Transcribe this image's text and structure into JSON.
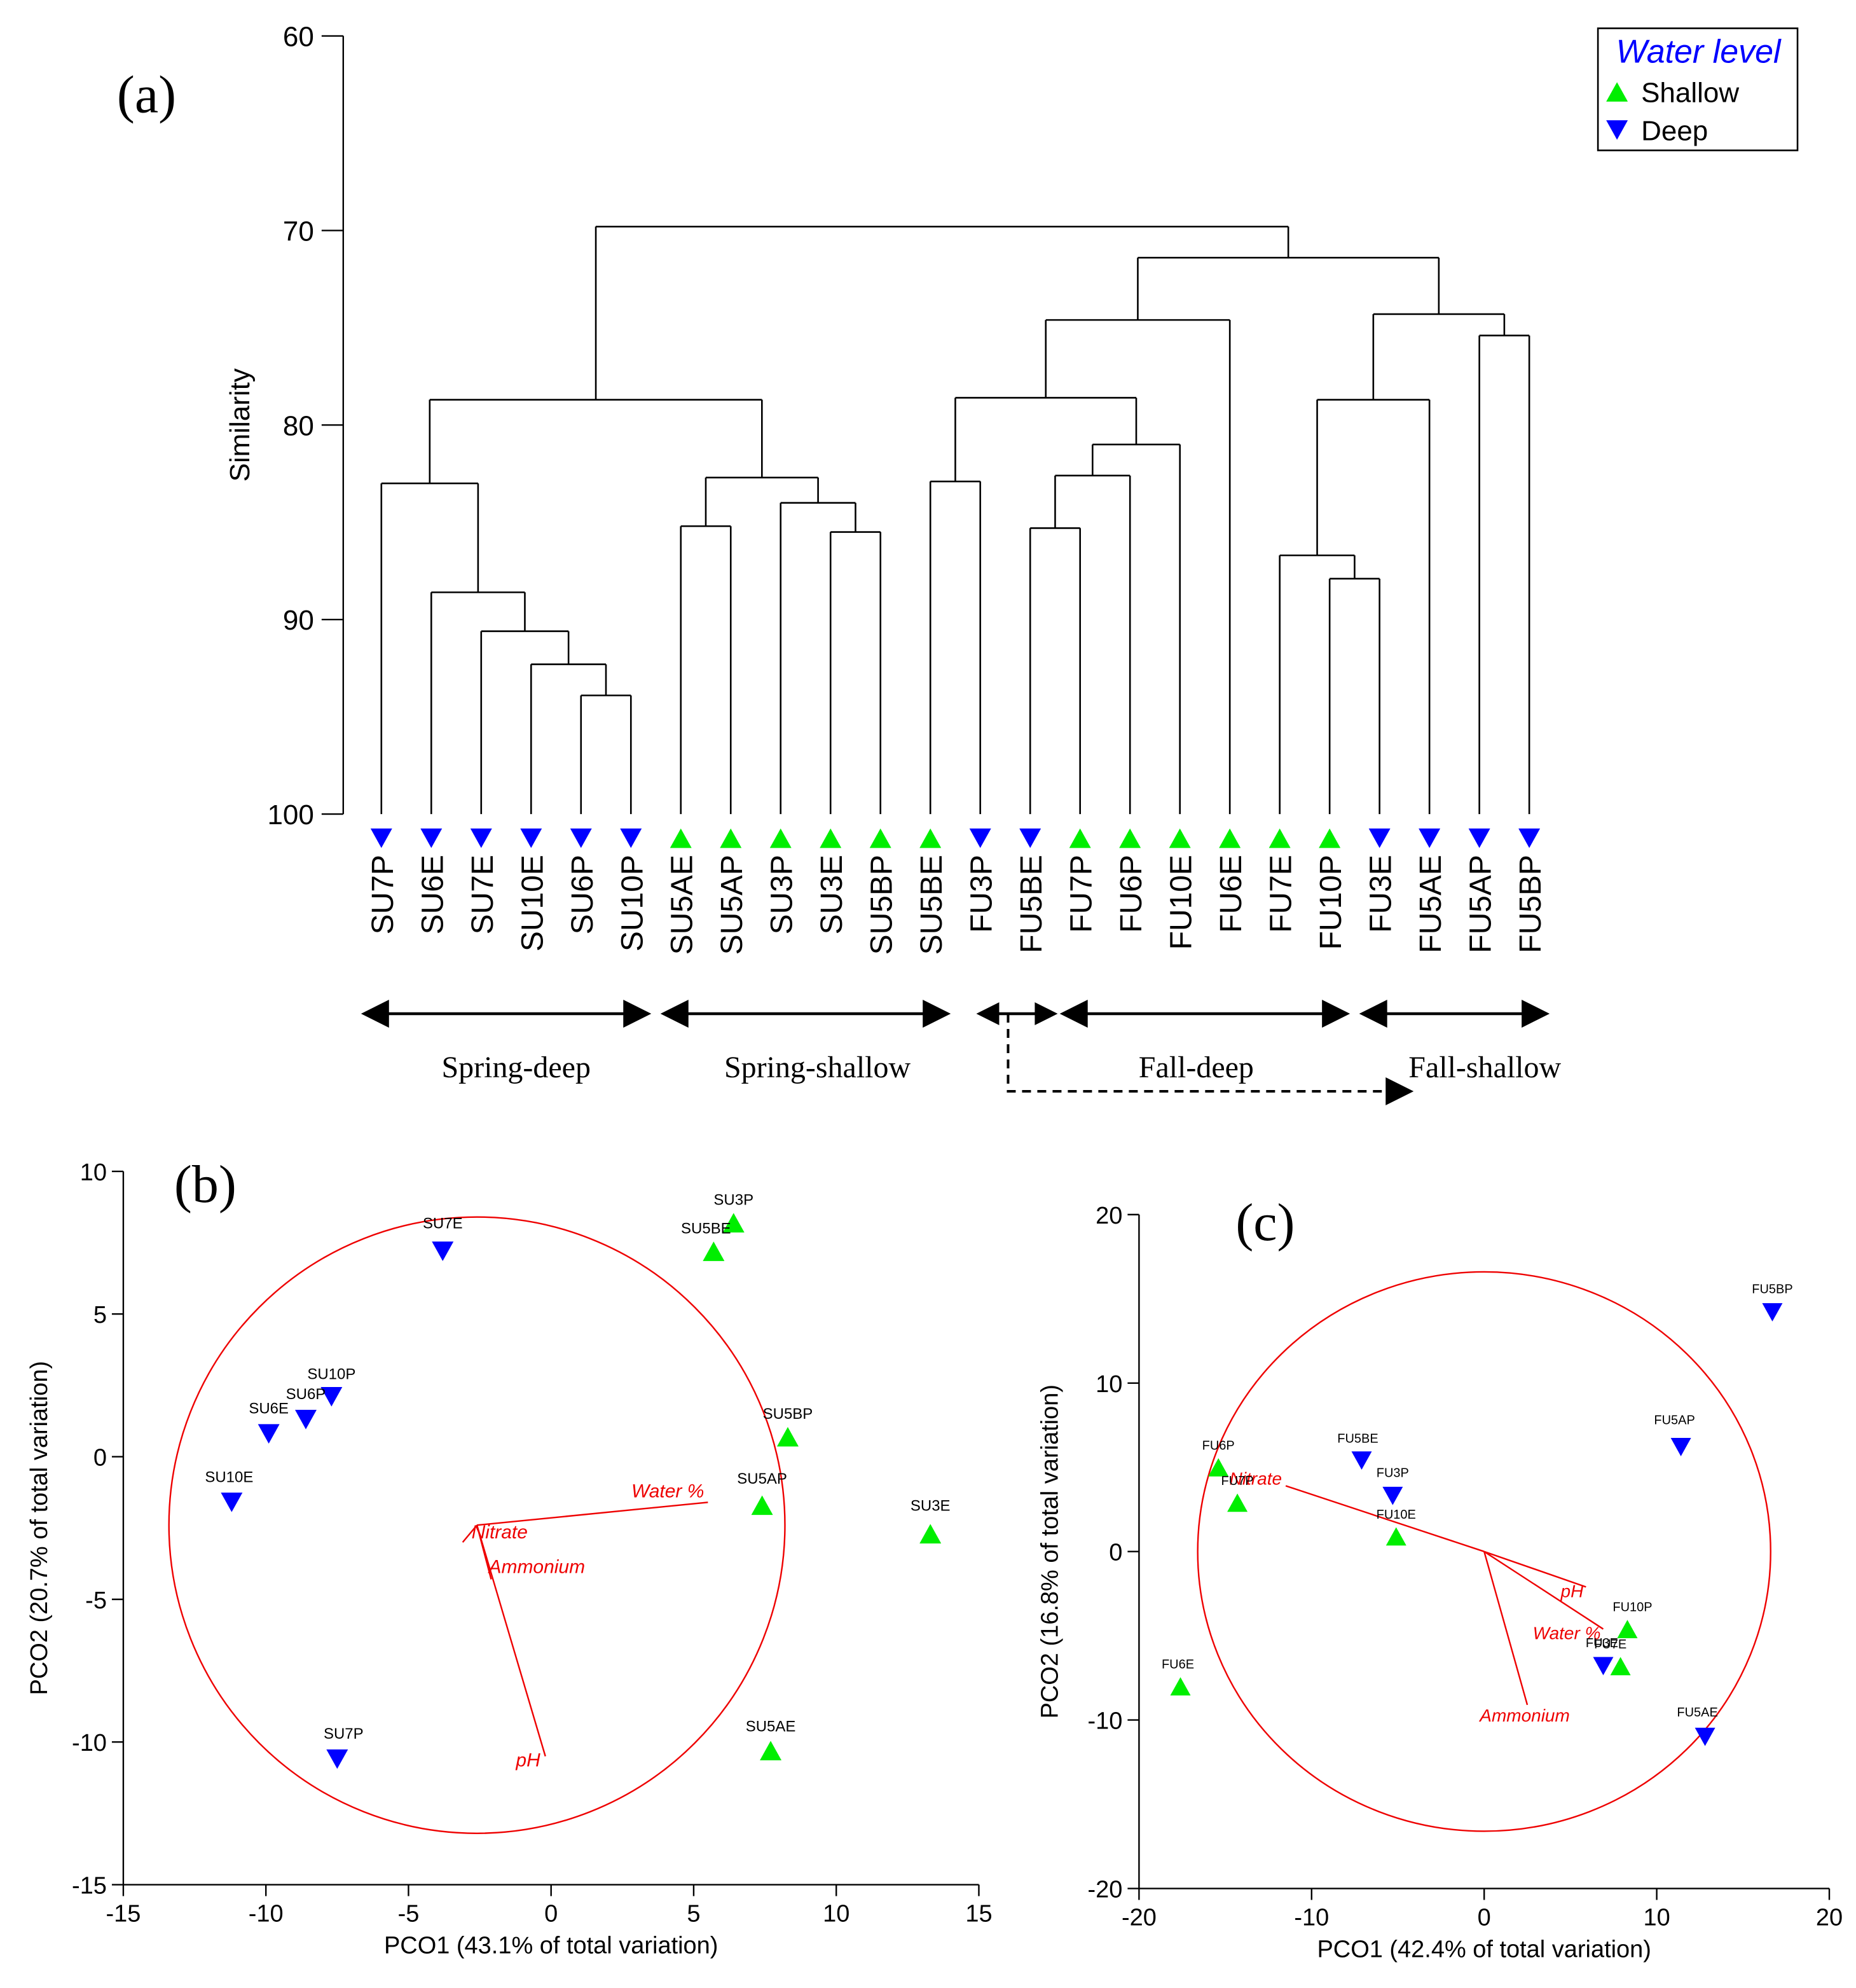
{
  "colors": {
    "shallow": "#00ee00",
    "deep": "#0000ff",
    "vector": "#ee0000",
    "line": "#000000"
  },
  "chart_data": [
    {
      "type": "dendrogram",
      "panel_label": "(a)",
      "ylabel": "Similarity",
      "ylim": [
        60,
        100
      ],
      "yticks": [
        "60",
        "70",
        "80",
        "90",
        "100"
      ],
      "leaves": [
        {
          "label": "SU7P",
          "group": "deep"
        },
        {
          "label": "SU6E",
          "group": "deep"
        },
        {
          "label": "SU7E",
          "group": "deep"
        },
        {
          "label": "SU10E",
          "group": "deep"
        },
        {
          "label": "SU6P",
          "group": "deep"
        },
        {
          "label": "SU10P",
          "group": "deep"
        },
        {
          "label": "SU5AE",
          "group": "shallow"
        },
        {
          "label": "SU5AP",
          "group": "shallow"
        },
        {
          "label": "SU3P",
          "group": "shallow"
        },
        {
          "label": "SU3E",
          "group": "shallow"
        },
        {
          "label": "SU5BP",
          "group": "shallow"
        },
        {
          "label": "SU5BE",
          "group": "shallow"
        },
        {
          "label": "FU3P",
          "group": "deep"
        },
        {
          "label": "FU5BE",
          "group": "deep"
        },
        {
          "label": "FU7P",
          "group": "shallow"
        },
        {
          "label": "FU6P",
          "group": "shallow"
        },
        {
          "label": "FU10E",
          "group": "shallow"
        },
        {
          "label": "FU6E",
          "group": "shallow"
        },
        {
          "label": "FU7E",
          "group": "shallow"
        },
        {
          "label": "FU10P",
          "group": "shallow"
        },
        {
          "label": "FU3E",
          "group": "deep"
        },
        {
          "label": "FU5AE",
          "group": "deep"
        },
        {
          "label": "FU5AP",
          "group": "deep"
        },
        {
          "label": "FU5BP",
          "group": "deep"
        }
      ],
      "merges": [
        {
          "a": 4,
          "b": 5,
          "height": 93.9
        },
        {
          "a": 3,
          "b": 24,
          "height": 92.3
        },
        {
          "a": 2,
          "b": 25,
          "height": 90.6
        },
        {
          "a": 1,
          "b": 26,
          "height": 88.6
        },
        {
          "a": 0,
          "b": 27,
          "height": 83.0
        },
        {
          "a": 9,
          "b": 10,
          "height": 85.5
        },
        {
          "a": 8,
          "b": 29,
          "height": 84.0
        },
        {
          "a": 6,
          "b": 7,
          "height": 85.2
        },
        {
          "a": 31,
          "b": 30,
          "height": 82.7
        },
        {
          "a": 28,
          "b": 32,
          "height": 78.7
        },
        {
          "a": 11,
          "b": 12,
          "height": 82.9
        },
        {
          "a": 13,
          "b": 14,
          "height": 85.3
        },
        {
          "a": 35,
          "b": 15,
          "height": 82.6
        },
        {
          "a": 36,
          "b": 16,
          "height": 81.0
        },
        {
          "a": 34,
          "b": 37,
          "height": 78.6
        },
        {
          "a": 38,
          "b": 17,
          "height": 74.6
        },
        {
          "a": 19,
          "b": 20,
          "height": 87.9
        },
        {
          "a": 18,
          "b": 40,
          "height": 86.7
        },
        {
          "a": 41,
          "b": 21,
          "height": 78.7
        },
        {
          "a": 22,
          "b": 23,
          "height": 75.4
        },
        {
          "a": 42,
          "b": 43,
          "height": 74.3
        },
        {
          "a": 39,
          "b": 44,
          "height": 71.4
        },
        {
          "a": 33,
          "b": 45,
          "height": 69.8
        }
      ],
      "groups": [
        {
          "label": "Spring-deep",
          "from": "SU7P",
          "to": "SU10P"
        },
        {
          "label": "Spring-shallow",
          "from": "SU5AE",
          "to": "SU5BE"
        },
        {
          "label": "Fall-deep",
          "from": "FU7P",
          "to": "FU10P"
        },
        {
          "label": "Fall-shallow",
          "from": "FU3E",
          "to": "FU5BP"
        }
      ],
      "legend": {
        "title": "Water level",
        "items": [
          {
            "label": "Shallow",
            "group": "shallow"
          },
          {
            "label": "Deep",
            "group": "deep"
          }
        ]
      }
    },
    {
      "type": "scatter",
      "panel_label": "(b)",
      "xlabel": "PCO1 (43.1% of total variation)",
      "ylabel": "PCO2 (20.7% of total variation)",
      "xlim": [
        -15,
        15
      ],
      "ylim": [
        -15,
        10
      ],
      "xticks": [
        "-15",
        "-10",
        "-5",
        "0",
        "5",
        "10",
        "15"
      ],
      "yticks": [
        "10",
        "5",
        "0",
        "-5",
        "-10",
        "-15"
      ],
      "circle": {
        "cx": -2.6,
        "cy": -2.4,
        "r": 10.8
      },
      "points": [
        {
          "label": "SU7E",
          "x": -3.8,
          "y": 7.2,
          "group": "deep"
        },
        {
          "label": "SU10P",
          "x": -7.7,
          "y": 2.1,
          "group": "deep"
        },
        {
          "label": "SU6P",
          "x": -8.6,
          "y": 1.3,
          "group": "deep"
        },
        {
          "label": "SU6E",
          "x": -9.9,
          "y": 0.8,
          "group": "deep"
        },
        {
          "label": "SU10E",
          "x": -11.2,
          "y": -1.6,
          "group": "deep"
        },
        {
          "label": "SU7P",
          "x": -7.5,
          "y": -10.6,
          "group": "deep"
        },
        {
          "label": "SU3P",
          "x": 6.4,
          "y": 8.2,
          "group": "shallow"
        },
        {
          "label": "SU5BE",
          "x": 5.7,
          "y": 7.2,
          "group": "shallow"
        },
        {
          "label": "SU5BP",
          "x": 8.3,
          "y": 0.7,
          "group": "shallow"
        },
        {
          "label": "SU5AP",
          "x": 7.4,
          "y": -1.7,
          "group": "shallow"
        },
        {
          "label": "SU3E",
          "x": 13.3,
          "y": -2.7,
          "group": "shallow"
        },
        {
          "label": "SU5AE",
          "x": 7.7,
          "y": -10.3,
          "group": "shallow"
        }
      ],
      "vectors": [
        {
          "label": "Water %",
          "x": 8.1,
          "y": 0.8
        },
        {
          "label": "Nitrate",
          "x": -0.5,
          "y": -0.6
        },
        {
          "label": "Ammonium",
          "x": 0.5,
          "y": -1.9
        },
        {
          "label": "pH",
          "x": 2.4,
          "y": -8.1
        }
      ]
    },
    {
      "type": "scatter",
      "panel_label": "(c)",
      "xlabel": "PCO1 (42.4% of total variation)",
      "ylabel": "PCO2 (16.8% of total variation)",
      "xlim": [
        -20,
        20
      ],
      "ylim": [
        -20,
        20
      ],
      "xticks": [
        "-20",
        "-10",
        "0",
        "10",
        "20"
      ],
      "yticks": [
        "20",
        "10",
        "0",
        "-10",
        "-20"
      ],
      "circle": {
        "cx": 0,
        "cy": 0,
        "r": 16.6
      },
      "points": [
        {
          "label": "FU5BP",
          "x": 16.7,
          "y": 14.2,
          "group": "deep"
        },
        {
          "label": "FU5AP",
          "x": 11.4,
          "y": 6.2,
          "group": "deep"
        },
        {
          "label": "FU5BE",
          "x": -7.1,
          "y": 5.4,
          "group": "deep"
        },
        {
          "label": "FU3P",
          "x": -5.3,
          "y": 3.3,
          "group": "deep"
        },
        {
          "label": "FU3E",
          "x": 6.9,
          "y": -6.8,
          "group": "deep"
        },
        {
          "label": "FU5AE",
          "x": 12.8,
          "y": -11.0,
          "group": "deep"
        },
        {
          "label": "FU6P",
          "x": -15.4,
          "y": 5.0,
          "group": "shallow"
        },
        {
          "label": "FU7P",
          "x": -14.3,
          "y": 2.9,
          "group": "shallow"
        },
        {
          "label": "FU10E",
          "x": -5.1,
          "y": 0.9,
          "group": "shallow"
        },
        {
          "label": "FU10P",
          "x": 8.3,
          "y": -4.6,
          "group": "shallow"
        },
        {
          "label": "FU7E",
          "x": 7.9,
          "y": -6.8,
          "group": "shallow"
        },
        {
          "label": "FU6E",
          "x": -17.6,
          "y": -8.0,
          "group": "shallow"
        }
      ],
      "vectors": [
        {
          "label": "Nitrate",
          "x": -11.5,
          "y": 3.9
        },
        {
          "label": "pH",
          "x": 5.9,
          "y": -2.1
        },
        {
          "label": "Water %",
          "x": 6.9,
          "y": -4.6
        },
        {
          "label": "Ammonium",
          "x": 2.5,
          "y": -9.1
        }
      ]
    }
  ]
}
